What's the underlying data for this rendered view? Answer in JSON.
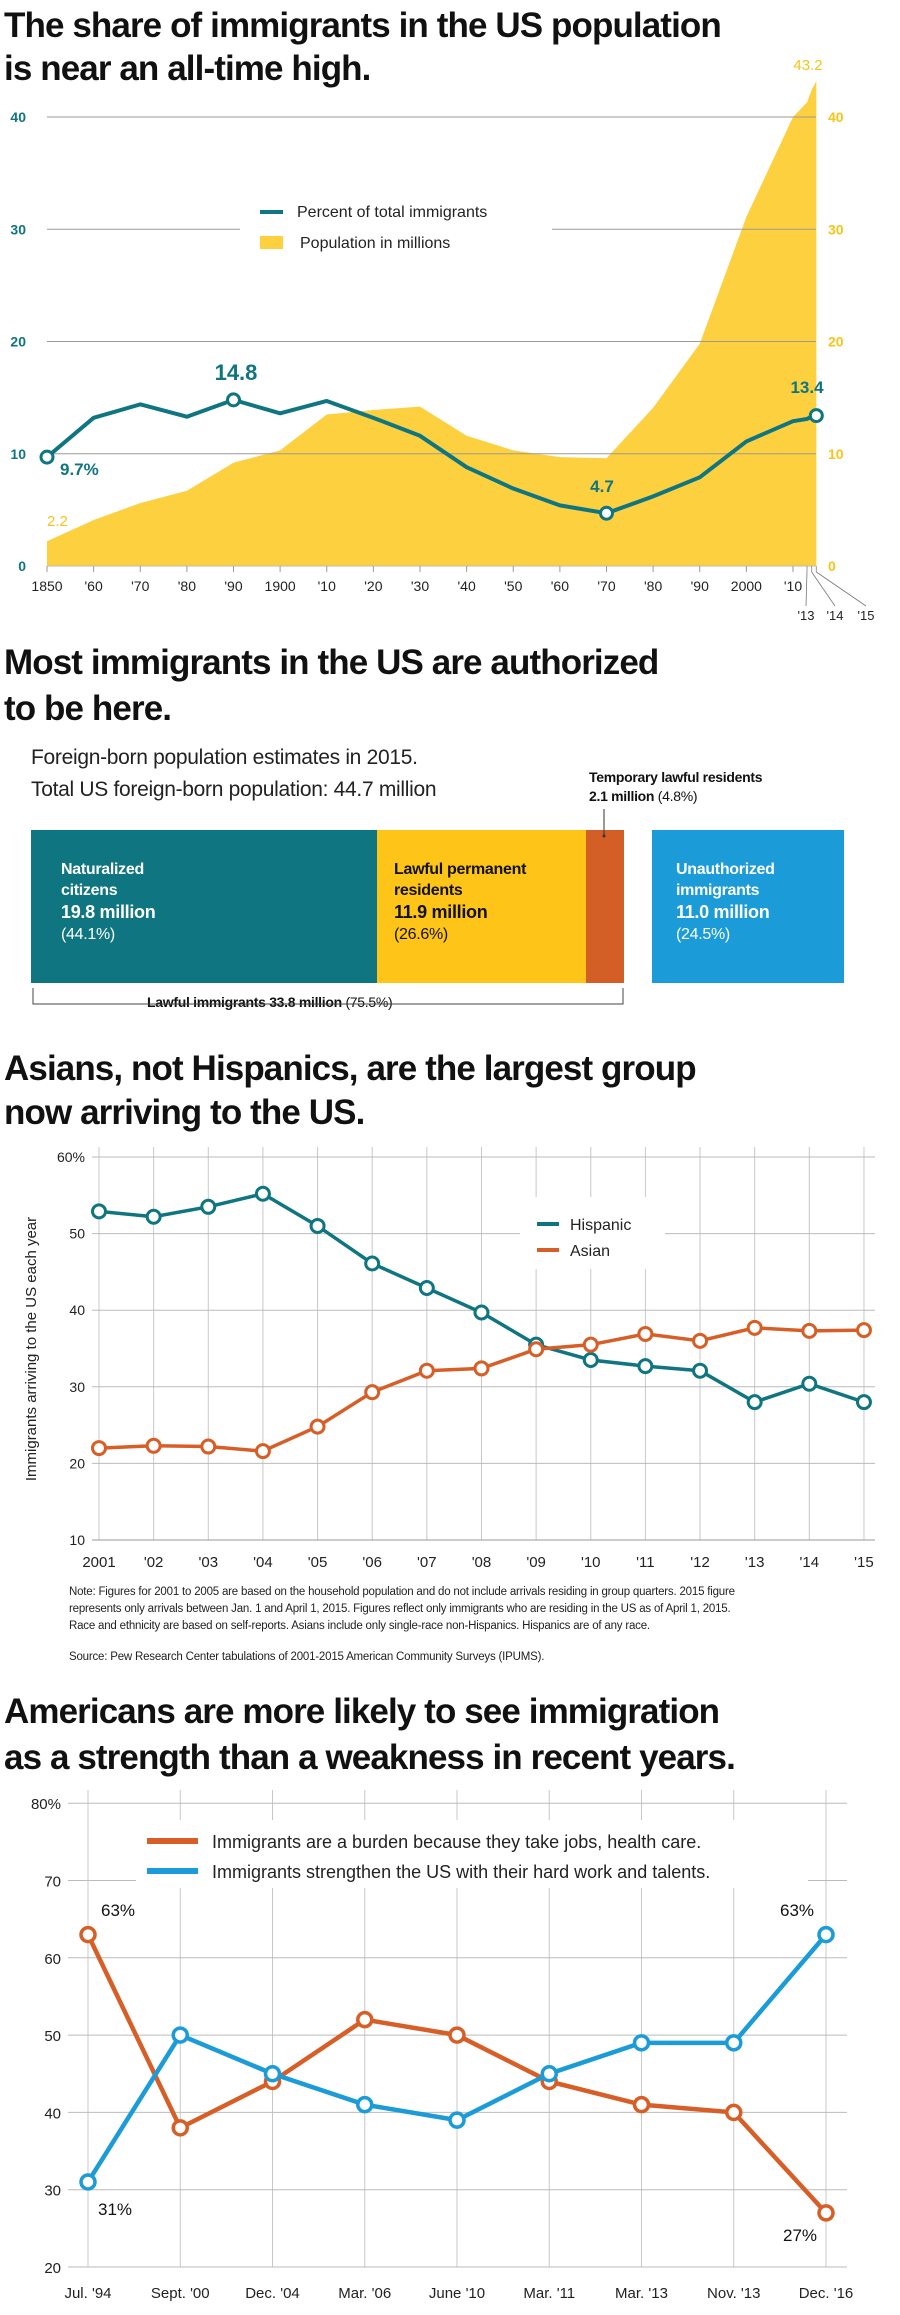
{
  "colors": {
    "teal": "#0f7580",
    "yellow": "#fdd03f",
    "orange": "#d75f27",
    "blue": "#1b9bd7",
    "lpr_yellow": "#fec518",
    "grid": "#b5b5b5"
  },
  "section1": {
    "title_line1": "The share of immigrants in the US population",
    "title_line2": "is near an all-time high."
  },
  "section2": {
    "title_line1": "Most immigrants in the US are authorized",
    "title_line2": "to be here.",
    "subtitle_line1": "Foreign-born population estimates in 2015.",
    "subtitle_line2": "Total US foreign-born population: 44.7 million",
    "temporary": {
      "label": "Temporary lawful residents",
      "value": "2.1 million",
      "pct": "(4.8%)"
    },
    "segments": [
      {
        "label_line1": "Naturalized",
        "label_line2": "citizens",
        "value": "19.8 million",
        "pct": "(44.1%)",
        "millions": 19.8
      },
      {
        "label_line1": "Lawful permanent",
        "label_line2": "residents",
        "value": "11.9 million",
        "pct": "(26.6%)",
        "millions": 11.9
      },
      {
        "label_line1": "",
        "label_line2": "",
        "value": "",
        "pct": "",
        "millions": 2.1
      },
      {
        "label_line1": "Unauthorized",
        "label_line2": "immigrants",
        "value": "11.0 million",
        "pct": "(24.5%)",
        "millions": 11.0
      }
    ],
    "bracket": {
      "label": "Lawful immigrants",
      "value": "33.8 million",
      "pct": "(75.5%)"
    }
  },
  "section3": {
    "title_line1": "Asians, not Hispanics, are the largest group",
    "title_line2": "now arriving to the US.",
    "note_line1": "Note: Figures for 2001 to 2005 are based on the household population and do not include arrivals residing in group quarters. 2015 figure",
    "note_line2": "represents only arrivals between Jan. 1 and April 1, 2015. Figures reflect only immigrants who are residing in the US as of April 1, 2015.",
    "note_line3": "Race and ethnicity are based on self-reports. Asians include only single-race non-Hispanics. Hispanics are of any race.",
    "source": "Source: Pew Research Center tabulations of 2001-2015 American Community Surveys (IPUMS)."
  },
  "section4": {
    "title_line1": "Americans are more likely to see immigration",
    "title_line2": "as a strength than a weakness in recent years."
  },
  "chart_data": [
    {
      "type": "line+area",
      "title": "The share of immigrants in the US population is near an all-time high.",
      "x": [
        1850,
        1860,
        1870,
        1880,
        1890,
        1900,
        1910,
        1920,
        1930,
        1940,
        1950,
        1960,
        1970,
        1980,
        1990,
        2000,
        2010,
        2013,
        2014,
        2015
      ],
      "x_tick_labels": [
        "1850",
        "'60",
        "'70",
        "'80",
        "'90",
        "1900",
        "'10",
        "'20",
        "'30",
        "'40",
        "'50",
        "'60",
        "'70",
        "'80",
        "'90",
        "2000",
        "'10",
        "'13",
        "'14",
        "'15"
      ],
      "series": [
        {
          "name": "Percent of total immigrants",
          "type": "line",
          "axis": "left",
          "color": "#0f7580",
          "values": [
            9.7,
            13.2,
            14.4,
            13.3,
            14.8,
            13.6,
            14.7,
            13.2,
            11.6,
            8.8,
            6.9,
            5.4,
            4.7,
            6.2,
            7.9,
            11.1,
            12.9,
            13.1,
            13.3,
            13.4
          ]
        },
        {
          "name": "Population in millions",
          "type": "area",
          "axis": "right",
          "color": "#fdd03f",
          "values": [
            2.2,
            4.1,
            5.6,
            6.7,
            9.2,
            10.3,
            13.5,
            13.9,
            14.2,
            11.6,
            10.3,
            9.7,
            9.6,
            14.1,
            19.8,
            31.1,
            40.0,
            41.3,
            42.4,
            43.2
          ]
        }
      ],
      "annotations": [
        {
          "series": 0,
          "x": 1850,
          "text": "9.7%"
        },
        {
          "series": 0,
          "x": 1890,
          "text": "14.8"
        },
        {
          "series": 0,
          "x": 1970,
          "text": "4.7"
        },
        {
          "series": 0,
          "x": 2015,
          "text": "13.4"
        },
        {
          "series": 1,
          "x": 1850,
          "text": "2.2"
        },
        {
          "series": 1,
          "x": 2015,
          "text": "43.2"
        }
      ],
      "y_ticks": [
        "0",
        "10",
        "20",
        "30",
        "40"
      ],
      "ylim": [
        0,
        45
      ],
      "grid": true,
      "legend": "center"
    },
    {
      "type": "stacked-bar",
      "categories": [
        "Naturalized citizens",
        "Lawful permanent residents",
        "Temporary lawful residents",
        "Unauthorized immigrants"
      ],
      "values": [
        19.8,
        11.9,
        2.1,
        11.0
      ],
      "percent": [
        44.1,
        26.6,
        4.8,
        24.5
      ],
      "unit": "million"
    },
    {
      "type": "line",
      "categories": [
        "2001",
        "'02",
        "'03",
        "'04",
        "'05",
        "'06",
        "'07",
        "'08",
        "'09",
        "'10",
        "'11",
        "'12",
        "'13",
        "'14",
        "'15"
      ],
      "ylabel": "Immigrants arriving to the US each year",
      "y_ticks": [
        "10",
        "20",
        "30",
        "40",
        "50",
        "60%"
      ],
      "ylim": [
        10,
        60
      ],
      "grid": true,
      "legend": "center-right",
      "series": [
        {
          "name": "Hispanic",
          "color": "#0f7580",
          "values": [
            52.9,
            52.2,
            53.5,
            55.2,
            51.0,
            46.1,
            42.9,
            39.7,
            35.5,
            33.5,
            32.7,
            32.1,
            28.0,
            30.4,
            28.0
          ]
        },
        {
          "name": "Asian",
          "color": "#d75f27",
          "values": [
            22.0,
            22.3,
            22.2,
            21.6,
            24.8,
            29.3,
            32.1,
            32.4,
            34.9,
            35.5,
            36.9,
            36.0,
            37.7,
            37.3,
            37.4
          ]
        }
      ]
    },
    {
      "type": "line",
      "categories": [
        "Jul. '94",
        "Sept. '00",
        "Dec. '04",
        "Mar. '06",
        "June '10",
        "Mar. '11",
        "Mar. '13",
        "Nov. '13",
        "Dec. '16"
      ],
      "y_ticks": [
        "20",
        "30",
        "40",
        "50",
        "60",
        "70",
        "80%"
      ],
      "ylim": [
        20,
        80
      ],
      "grid": true,
      "legend": "top",
      "series": [
        {
          "name": "Immigrants are a burden because they take jobs, health care.",
          "color": "#d75f27",
          "values": [
            63,
            38,
            44,
            52,
            50,
            44,
            41,
            40,
            27
          ]
        },
        {
          "name": "Immigrants strengthen the US with their hard work and talents.",
          "color": "#1b9bd7",
          "values": [
            31,
            50,
            45,
            41,
            39,
            45,
            49,
            49,
            63
          ]
        }
      ],
      "annotations": [
        {
          "series": 0,
          "index": 0,
          "text": "63%"
        },
        {
          "series": 1,
          "index": 0,
          "text": "31%"
        },
        {
          "series": 1,
          "index": 8,
          "text": "63%"
        },
        {
          "series": 0,
          "index": 8,
          "text": "27%"
        }
      ]
    }
  ]
}
